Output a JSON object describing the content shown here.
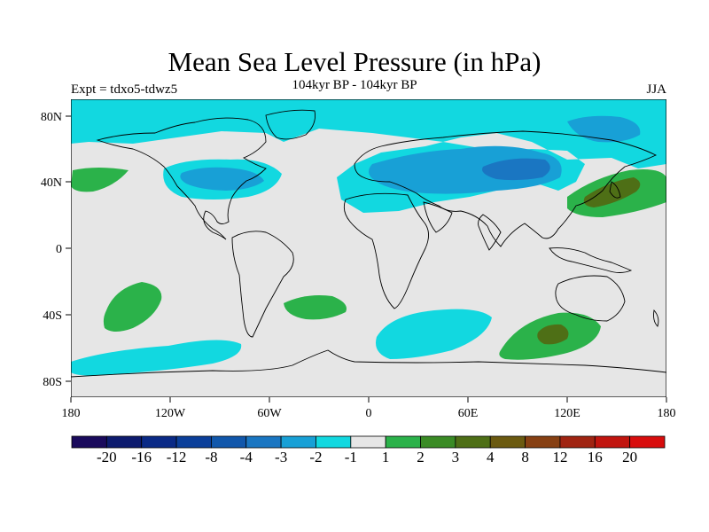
{
  "title": "Mean Sea Level Pressure (in hPa)",
  "subtitle": "104kyr BP - 104kyr BP",
  "experiment": "Expt = tdxo5-tdwz5",
  "season": "JJA",
  "axes": {
    "x_ticks": [
      "180",
      "120W",
      "60W",
      "0",
      "60E",
      "120E",
      "180"
    ],
    "y_ticks": [
      "80N",
      "40N",
      "0",
      "40S",
      "80S"
    ]
  },
  "colorbar": {
    "labels": [
      "-20",
      "-16",
      "-12",
      "-8",
      "-4",
      "-3",
      "-2",
      "-1",
      "1",
      "2",
      "3",
      "4",
      "8",
      "12",
      "16",
      "20"
    ],
    "colors": [
      "#1a0a5c",
      "#0d1b6e",
      "#0a2a86",
      "#0b3f9a",
      "#1157ab",
      "#1a76c2",
      "#18a0d6",
      "#12d8e0",
      "#e6e6e6",
      "#2bb24a",
      "#3a8b25",
      "#4e6f16",
      "#6b5a10",
      "#874013",
      "#a02412",
      "#c1150f",
      "#d80d0d"
    ]
  },
  "fill_colors": {
    "neutral": "#e6e6e6",
    "cyan": "#12d8e0",
    "blue": "#18a0d6",
    "darkblue": "#1a76c2",
    "green": "#2bb24a",
    "olive": "#4e6f16"
  }
}
